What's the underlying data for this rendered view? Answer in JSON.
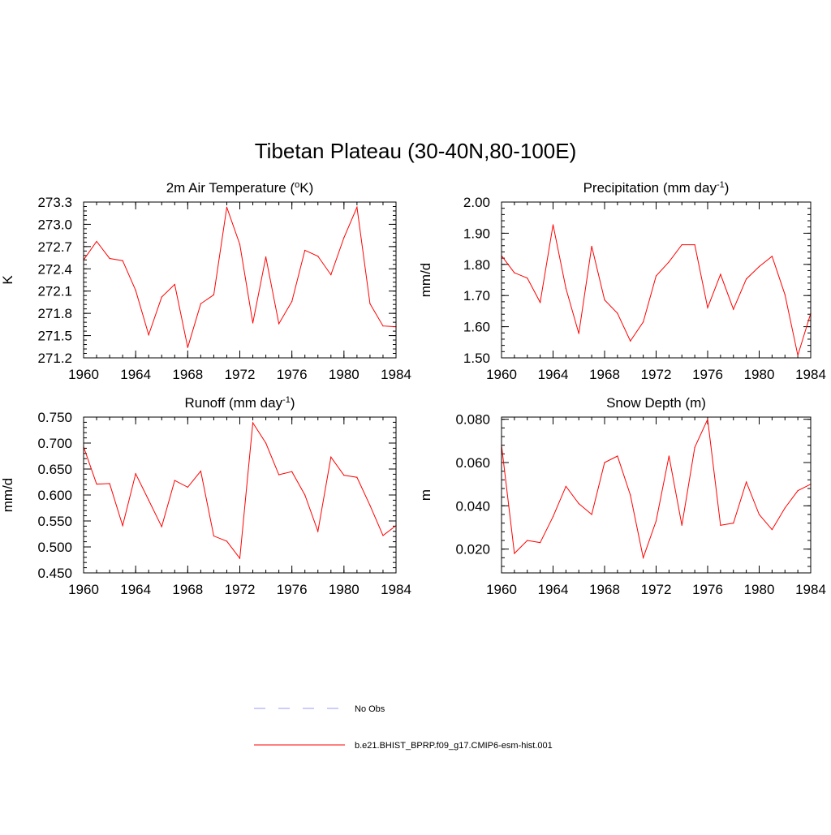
{
  "figure": {
    "title": "Tibetan Plateau (30-40N,80-100E)"
  },
  "legend": {
    "items": [
      {
        "label": "No Obs",
        "color": "#9999ff",
        "style": "dashed"
      },
      {
        "label": "b.e21.BHIST_BPRP.f09_g17.CMIP6-esm-hist.001",
        "color": "#ff0000",
        "style": "solid"
      }
    ]
  },
  "chart_data": [
    {
      "type": "line",
      "title": "2m Air Temperature (°K)",
      "title_main": "2m Air Temperature (",
      "title_sup": "o",
      "title_tail": "K)",
      "ylabel": "K",
      "xlim": [
        1960,
        1984
      ],
      "ylim": [
        271.2,
        273.3
      ],
      "xticks": [
        "1960",
        "1964",
        "1968",
        "1972",
        "1976",
        "1980",
        "1984"
      ],
      "xtick_values": [
        1960,
        1964,
        1968,
        1972,
        1976,
        1980,
        1984
      ],
      "yticks": [
        "271.2",
        "271.5",
        "271.8",
        "272.1",
        "272.4",
        "272.7",
        "273.0",
        "273.3"
      ],
      "ytick_values": [
        271.2,
        271.5,
        271.8,
        272.1,
        272.4,
        272.7,
        273.0,
        273.3
      ],
      "x": [
        1960,
        1961,
        1962,
        1963,
        1964,
        1965,
        1966,
        1967,
        1968,
        1969,
        1970,
        1971,
        1972,
        1973,
        1974,
        1975,
        1976,
        1977,
        1978,
        1979,
        1980,
        1981,
        1982,
        1983,
        1984
      ],
      "series": [
        {
          "name": "b.e21.BHIST_BPRP.f09_g17.CMIP6-esm-hist.001",
          "color": "#ff0000",
          "values": [
            272.52,
            272.77,
            272.54,
            272.51,
            272.11,
            271.51,
            272.02,
            272.19,
            271.34,
            271.93,
            272.05,
            273.23,
            272.73,
            271.67,
            272.56,
            271.66,
            271.96,
            272.65,
            272.57,
            272.32,
            272.82,
            273.23,
            271.93,
            271.63,
            271.62
          ]
        }
      ]
    },
    {
      "type": "line",
      "title": "Precipitation (mm day-1)",
      "title_main": "Precipitation (mm day",
      "title_sup": "-1",
      "title_tail": ")",
      "ylabel": "mm/d",
      "xlim": [
        1960,
        1984
      ],
      "ylim": [
        1.5,
        2.0
      ],
      "xticks": [
        "1960",
        "1964",
        "1968",
        "1972",
        "1976",
        "1980",
        "1984"
      ],
      "xtick_values": [
        1960,
        1964,
        1968,
        1972,
        1976,
        1980,
        1984
      ],
      "yticks": [
        "1.50",
        "1.60",
        "1.70",
        "1.80",
        "1.90",
        "2.00"
      ],
      "ytick_values": [
        1.5,
        1.6,
        1.7,
        1.8,
        1.9,
        2.0
      ],
      "x": [
        1960,
        1961,
        1962,
        1963,
        1964,
        1965,
        1966,
        1967,
        1968,
        1969,
        1970,
        1971,
        1972,
        1973,
        1974,
        1975,
        1976,
        1977,
        1978,
        1979,
        1980,
        1981,
        1982,
        1983,
        1984
      ],
      "series": [
        {
          "name": "b.e21.BHIST_BPRP.f09_g17.CMIP6-esm-hist.001",
          "color": "#ff0000",
          "values": [
            1.828,
            1.773,
            1.756,
            1.678,
            1.927,
            1.723,
            1.578,
            1.858,
            1.686,
            1.643,
            1.554,
            1.615,
            1.763,
            1.808,
            1.863,
            1.863,
            1.661,
            1.768,
            1.656,
            1.753,
            1.793,
            1.826,
            1.703,
            1.508,
            1.643
          ]
        }
      ]
    },
    {
      "type": "line",
      "title": "Runoff (mm day-1)",
      "title_main": "Runoff (mm day",
      "title_sup": "-1",
      "title_tail": ")",
      "ylabel": "mm/d",
      "xlim": [
        1960,
        1984
      ],
      "ylim": [
        0.45,
        0.75
      ],
      "xticks": [
        "1960",
        "1964",
        "1968",
        "1972",
        "1976",
        "1980",
        "1984"
      ],
      "xtick_values": [
        1960,
        1964,
        1968,
        1972,
        1976,
        1980,
        1984
      ],
      "yticks": [
        "0.450",
        "0.500",
        "0.550",
        "0.600",
        "0.650",
        "0.700",
        "0.750"
      ],
      "ytick_values": [
        0.45,
        0.5,
        0.55,
        0.6,
        0.65,
        0.7,
        0.75
      ],
      "x": [
        1960,
        1961,
        1962,
        1963,
        1964,
        1965,
        1966,
        1967,
        1968,
        1969,
        1970,
        1971,
        1972,
        1973,
        1974,
        1975,
        1976,
        1977,
        1978,
        1979,
        1980,
        1981,
        1982,
        1983,
        1984
      ],
      "series": [
        {
          "name": "b.e21.BHIST_BPRP.f09_g17.CMIP6-esm-hist.001",
          "color": "#ff0000",
          "values": [
            0.693,
            0.621,
            0.622,
            0.541,
            0.641,
            0.59,
            0.539,
            0.628,
            0.615,
            0.646,
            0.521,
            0.511,
            0.478,
            0.739,
            0.7,
            0.639,
            0.645,
            0.6,
            0.53,
            0.673,
            0.638,
            0.634,
            0.58,
            0.522,
            0.541
          ]
        }
      ]
    },
    {
      "type": "line",
      "title": "Snow Depth (m)",
      "title_main": "Snow Depth (m)",
      "title_sup": "",
      "title_tail": "",
      "ylabel": "m",
      "xlim": [
        1960,
        1984
      ],
      "ylim": [
        0.009,
        0.081
      ],
      "xticks": [
        "1960",
        "1964",
        "1968",
        "1972",
        "1976",
        "1980",
        "1984"
      ],
      "xtick_values": [
        1960,
        1964,
        1968,
        1972,
        1976,
        1980,
        1984
      ],
      "yticks": [
        "0.020",
        "0.040",
        "0.060",
        "0.080"
      ],
      "ytick_values": [
        0.02,
        0.04,
        0.06,
        0.08
      ],
      "x": [
        1960,
        1961,
        1962,
        1963,
        1964,
        1965,
        1966,
        1967,
        1968,
        1969,
        1970,
        1971,
        1972,
        1973,
        1974,
        1975,
        1976,
        1977,
        1978,
        1979,
        1980,
        1981,
        1982,
        1983,
        1984
      ],
      "series": [
        {
          "name": "b.e21.BHIST_BPRP.f09_g17.CMIP6-esm-hist.001",
          "color": "#ff0000",
          "values": [
            0.068,
            0.018,
            0.024,
            0.023,
            0.035,
            0.049,
            0.041,
            0.036,
            0.06,
            0.063,
            0.045,
            0.016,
            0.033,
            0.063,
            0.031,
            0.067,
            0.08,
            0.031,
            0.032,
            0.051,
            0.036,
            0.029,
            0.039,
            0.047,
            0.05
          ]
        }
      ]
    }
  ]
}
